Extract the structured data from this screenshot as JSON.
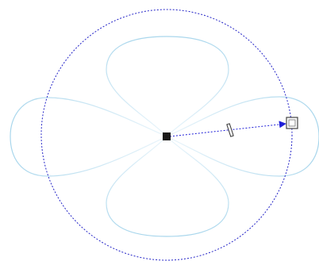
{
  "canvas": {
    "background": "#ffffff"
  },
  "shape": {
    "type": "four-petal rose curve (radial distortion envelope)",
    "petal_count": 4,
    "stroke_color": "#a8d6ec",
    "fade_color": "#eaf5fb"
  },
  "guide_circle": {
    "style": "dotted",
    "color": "#2626c8"
  },
  "center_handle": {
    "icon": "center-handle-icon",
    "color": "#1a1a1a"
  },
  "direction_vector": {
    "style": "dotted-arrow",
    "color": "#1f1fd8",
    "midpoint_marker": "slider-tick-icon"
  },
  "end_handle": {
    "icon": "square-handle-icon",
    "color": "#444444"
  }
}
